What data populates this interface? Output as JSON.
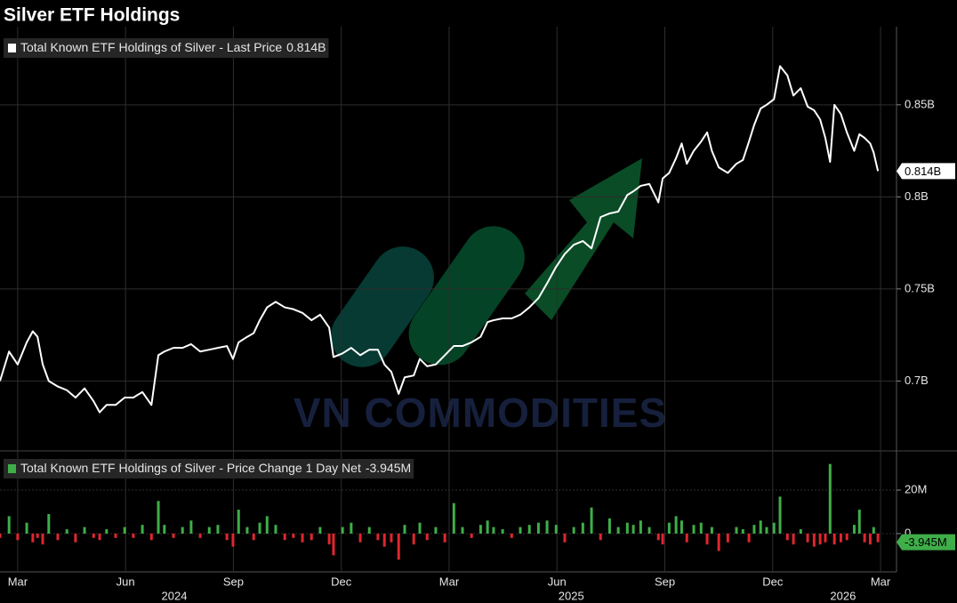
{
  "chart_data": [
    {
      "type": "line",
      "title": "Silver ETF Holdings",
      "watermark": "VN COMMODITIES",
      "x": [
        2024.126,
        2024.147,
        2024.167,
        2024.188,
        2024.202,
        2024.213,
        2024.225,
        2024.239,
        2024.26,
        2024.281,
        2024.301,
        2024.322,
        2024.343,
        2024.357,
        2024.373,
        2024.394,
        2024.415,
        2024.435,
        2024.456,
        2024.477,
        2024.493,
        2024.507,
        2024.528,
        2024.549,
        2024.569,
        2024.59,
        2024.611,
        2024.631,
        2024.652,
        2024.666,
        2024.679,
        2024.699,
        2024.714,
        2024.728,
        2024.745,
        2024.765,
        2024.786,
        2024.806,
        2024.827,
        2024.848,
        2024.868,
        2024.889,
        2024.899,
        2024.92,
        2024.94,
        2024.961,
        2024.982,
        2025.002,
        2025.017,
        2025.033,
        2025.05,
        2025.064,
        2025.085,
        2025.099,
        2025.116,
        2025.136,
        2025.157,
        2025.178,
        2025.198,
        2025.219,
        2025.24,
        2025.256,
        2025.27,
        2025.291,
        2025.312,
        2025.332,
        2025.353,
        2025.374,
        2025.394,
        2025.415,
        2025.435,
        2025.456,
        2025.477,
        2025.497,
        2025.518,
        2025.539,
        2025.559,
        2025.58,
        2025.594,
        2025.611,
        2025.631,
        2025.652,
        2025.662,
        2025.677,
        2025.693,
        2025.706,
        2025.718,
        2025.734,
        2025.751,
        2025.765,
        2025.776,
        2025.792,
        2025.813,
        2025.833,
        2025.848,
        2025.862,
        2025.874,
        2025.889,
        2025.903,
        2025.92,
        2025.934,
        2025.951,
        2025.965,
        2025.982,
        2025.998,
        2026.013,
        2026.027,
        2026.039,
        2026.05,
        2026.06,
        2026.075,
        2026.089,
        2026.106,
        2026.118,
        2026.13,
        2026.143,
        2026.151,
        2026.161
      ],
      "series": [
        {
          "name": "Total Known ETF Holdings of Silver - Last Price",
          "color": "#ffffff",
          "last_label": "0.814B",
          "values": [
            0.7,
            0.716,
            0.709,
            0.721,
            0.727,
            0.724,
            0.709,
            0.7,
            0.697,
            0.695,
            0.691,
            0.696,
            0.689,
            0.683,
            0.687,
            0.687,
            0.691,
            0.691,
            0.694,
            0.687,
            0.714,
            0.716,
            0.718,
            0.718,
            0.72,
            0.716,
            0.717,
            0.718,
            0.719,
            0.712,
            0.721,
            0.724,
            0.726,
            0.733,
            0.74,
            0.743,
            0.74,
            0.739,
            0.737,
            0.733,
            0.736,
            0.729,
            0.713,
            0.715,
            0.718,
            0.714,
            0.717,
            0.717,
            0.709,
            0.705,
            0.693,
            0.702,
            0.703,
            0.712,
            0.708,
            0.709,
            0.714,
            0.719,
            0.719,
            0.721,
            0.724,
            0.732,
            0.733,
            0.734,
            0.734,
            0.736,
            0.74,
            0.745,
            0.753,
            0.762,
            0.769,
            0.774,
            0.776,
            0.772,
            0.789,
            0.791,
            0.792,
            0.801,
            0.803,
            0.806,
            0.807,
            0.797,
            0.81,
            0.813,
            0.821,
            0.829,
            0.818,
            0.825,
            0.83,
            0.835,
            0.825,
            0.816,
            0.813,
            0.818,
            0.82,
            0.83,
            0.839,
            0.848,
            0.85,
            0.853,
            0.871,
            0.866,
            0.855,
            0.859,
            0.849,
            0.847,
            0.842,
            0.832,
            0.819,
            0.85,
            0.845,
            0.835,
            0.825,
            0.834,
            0.832,
            0.829,
            0.824,
            0.814
          ]
        }
      ],
      "xlim": [
        2024.126,
        2026.204
      ],
      "ylim": [
        0.663,
        0.89
      ],
      "yticks": [
        {
          "value": 0.7,
          "label": "0.7B"
        },
        {
          "value": 0.75,
          "label": "0.75B"
        },
        {
          "value": 0.8,
          "label": "0.8B"
        },
        {
          "value": 0.85,
          "label": "0.85B"
        }
      ],
      "grid": true
    },
    {
      "type": "bar",
      "x": [
        2024.126,
        2024.147,
        2024.167,
        2024.188,
        2024.202,
        2024.213,
        2024.225,
        2024.239,
        2024.26,
        2024.281,
        2024.301,
        2024.322,
        2024.343,
        2024.357,
        2024.373,
        2024.394,
        2024.415,
        2024.435,
        2024.456,
        2024.477,
        2024.493,
        2024.507,
        2024.528,
        2024.549,
        2024.569,
        2024.59,
        2024.611,
        2024.631,
        2024.652,
        2024.666,
        2024.679,
        2024.699,
        2024.714,
        2024.728,
        2024.745,
        2024.765,
        2024.786,
        2024.806,
        2024.827,
        2024.848,
        2024.868,
        2024.889,
        2024.899,
        2024.92,
        2024.94,
        2024.961,
        2024.982,
        2025.002,
        2025.017,
        2025.033,
        2025.05,
        2025.064,
        2025.085,
        2025.099,
        2025.116,
        2025.136,
        2025.157,
        2025.178,
        2025.198,
        2025.219,
        2025.24,
        2025.256,
        2025.27,
        2025.291,
        2025.312,
        2025.332,
        2025.353,
        2025.374,
        2025.394,
        2025.415,
        2025.435,
        2025.456,
        2025.477,
        2025.497,
        2025.518,
        2025.539,
        2025.559,
        2025.58,
        2025.594,
        2025.611,
        2025.631,
        2025.652,
        2025.662,
        2025.677,
        2025.693,
        2025.706,
        2025.718,
        2025.734,
        2025.751,
        2025.765,
        2025.776,
        2025.792,
        2025.813,
        2025.833,
        2025.848,
        2025.862,
        2025.874,
        2025.889,
        2025.903,
        2025.92,
        2025.934,
        2025.951,
        2025.965,
        2025.982,
        2025.998,
        2026.013,
        2026.027,
        2026.039,
        2026.05,
        2026.06,
        2026.075,
        2026.089,
        2026.106,
        2026.118,
        2026.13,
        2026.143,
        2026.151,
        2026.161
      ],
      "series": [
        {
          "name": "Total Known ETF Holdings of Silver - Price Change 1 Day Net",
          "color": "#3fae49",
          "negative_color": "#e0262e",
          "last_label": "-3.945M",
          "values": [
            -2,
            8,
            -3,
            5,
            -4,
            -2,
            -5,
            9,
            -3,
            2,
            -4,
            3,
            -2,
            -3,
            2,
            -2,
            3,
            -2,
            4,
            -3,
            15,
            4,
            -2,
            3,
            6,
            -2,
            3,
            4,
            -3,
            -6,
            11,
            3,
            -3,
            5,
            8,
            4,
            -3,
            -2,
            -4,
            -3,
            3,
            -5,
            -10,
            3,
            5,
            -4,
            3,
            -3,
            -6,
            -4,
            -12,
            4,
            -5,
            5,
            -3,
            3,
            -4,
            14,
            3,
            -2,
            4,
            6,
            3,
            2,
            -2,
            3,
            4,
            5,
            6,
            4,
            -4,
            3,
            5,
            12,
            -3,
            7,
            3,
            5,
            4,
            6,
            3,
            -3,
            -5,
            5,
            8,
            6,
            -4,
            4,
            5,
            -5,
            3,
            -8,
            -4,
            3,
            2,
            -4,
            4,
            6,
            3,
            5,
            17,
            -3,
            -5,
            2,
            -4,
            -6,
            -5,
            -4,
            32,
            -5,
            -4,
            -3,
            4,
            11,
            -4,
            -5,
            3,
            -3.945
          ]
        }
      ],
      "xlim": [
        2024.126,
        2026.204
      ],
      "ylim": [
        -17.6,
        37.6
      ],
      "yticks": [
        0,
        {
          "value": 20,
          "label": "20M"
        }
      ],
      "xticks": [
        {
          "value": 2024.167,
          "label": "Mar"
        },
        {
          "value": 2024.417,
          "label": "Jun"
        },
        {
          "value": 2024.667,
          "label": "Sep"
        },
        {
          "value": 2024.917,
          "label": "Dec"
        },
        {
          "value": 2025.167,
          "label": "Mar"
        },
        {
          "value": 2025.417,
          "label": "Jun"
        },
        {
          "value": 2025.667,
          "label": "Sep"
        },
        {
          "value": 2025.917,
          "label": "Dec"
        },
        {
          "value": 2026.167,
          "label": "Mar"
        }
      ],
      "year_labels": [
        {
          "value": 2024.53,
          "label": "2024"
        },
        {
          "value": 2025.45,
          "label": "2025"
        },
        {
          "value": 2026.08,
          "label": "2026"
        }
      ],
      "grid": true
    }
  ]
}
